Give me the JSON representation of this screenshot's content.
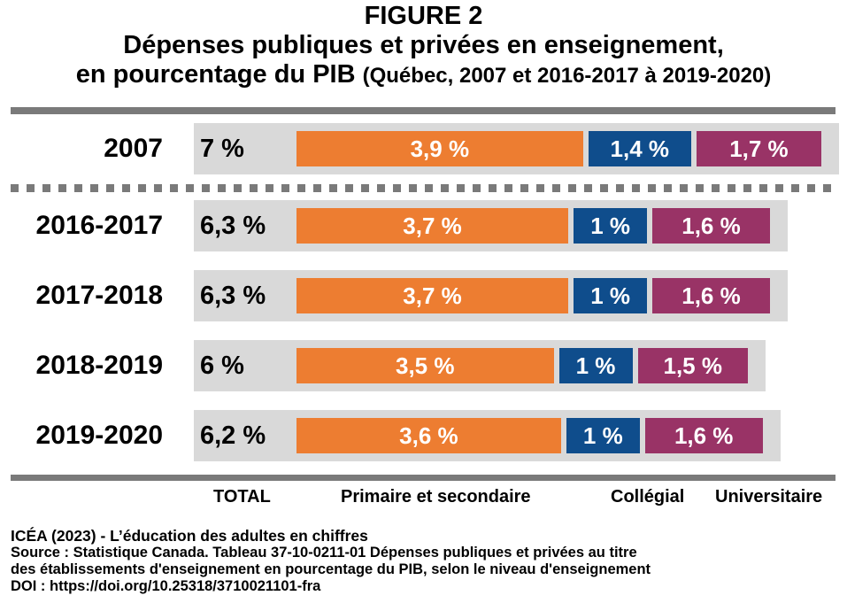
{
  "header": {
    "figure_label": "FIGURE 2",
    "title_line1": "Dépenses publiques et privées en enseignement,",
    "title_line2": "en pourcentage du PIB",
    "subtitle": "(Québec, 2007 et 2016-2017 à 2019-2020)"
  },
  "chart_data": {
    "type": "bar",
    "stacked": true,
    "orientation": "horizontal",
    "title": "Dépenses publiques et privées en enseignement, en pourcentage du PIB",
    "subtitle": "(Québec, 2007 et 2016-2017 à 2019-2020)",
    "categories": [
      "2007",
      "2016-2017",
      "2017-2018",
      "2018-2019",
      "2019-2020"
    ],
    "totals": [
      7,
      6.3,
      6.3,
      6,
      6.2
    ],
    "total_labels": [
      "7 %",
      "6,3 %",
      "6,3 %",
      "6 %",
      "6,2 %"
    ],
    "total_header": "TOTAL",
    "series": [
      {
        "name": "Primaire et secondaire",
        "color": "#ED7D31",
        "values": [
          3.9,
          3.7,
          3.7,
          3.5,
          3.6
        ],
        "labels": [
          "3,9 %",
          "3,7 %",
          "3,7 %",
          "3,5 %",
          "3,6 %"
        ]
      },
      {
        "name": "Collégial",
        "color": "#0F4D8C",
        "values": [
          1.4,
          1,
          1,
          1,
          1
        ],
        "labels": [
          "1,4 %",
          "1 %",
          "1 %",
          "1 %",
          "1 %"
        ]
      },
      {
        "name": "Universitaire",
        "color": "#993366",
        "values": [
          1.7,
          1.6,
          1.6,
          1.5,
          1.6
        ],
        "labels": [
          "1,7 %",
          "1,6 %",
          "1,6 %",
          "1,5 %",
          "1,6 %"
        ]
      }
    ],
    "row_background_color": "#D9D9D9",
    "separator_color": "#7A7A7A",
    "legend_position": "bottom",
    "grid": false
  },
  "footer": {
    "credit": "ICÉA (2023) - L’éducation des adultes en chiffres",
    "source_line1": "Source : Statistique Canada. Tableau 37-10-0211-01  Dépenses publiques et privées au titre",
    "source_line2": "des établissements d'enseignement en pourcentage du PIB, selon le niveau d'enseignement",
    "doi": "DOI : https://doi.org/10.25318/3710021101-fra"
  }
}
